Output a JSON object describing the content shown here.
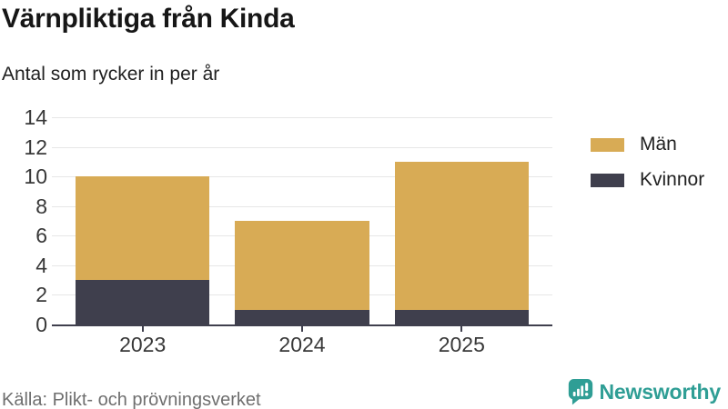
{
  "chart_data": {
    "type": "bar",
    "stacked": true,
    "title": "Värnpliktiga från Kinda",
    "subtitle": "Antal som rycker in per år",
    "categories": [
      "2023",
      "2024",
      "2025"
    ],
    "series": [
      {
        "name": "Män",
        "color": "#d8ab55",
        "values": [
          7,
          6,
          10
        ]
      },
      {
        "name": "Kvinnor",
        "color": "#3f3f4d",
        "values": [
          3,
          1,
          1
        ]
      }
    ],
    "totals": [
      10,
      7,
      11
    ],
    "xlabel": "",
    "ylabel": "",
    "ylim": [
      0,
      14
    ],
    "yticks": [
      0,
      2,
      4,
      6,
      8,
      10,
      12,
      14
    ],
    "grid": true,
    "legend_position": "right",
    "colors": {
      "grid": "#e7e7e7",
      "axis": "#3f3f4d",
      "tick_label": "#383838"
    }
  },
  "footer": {
    "source": "Källa: Plikt- och prövningsverket",
    "brand": "Newsworthy",
    "brand_color": "#2f9e95"
  }
}
